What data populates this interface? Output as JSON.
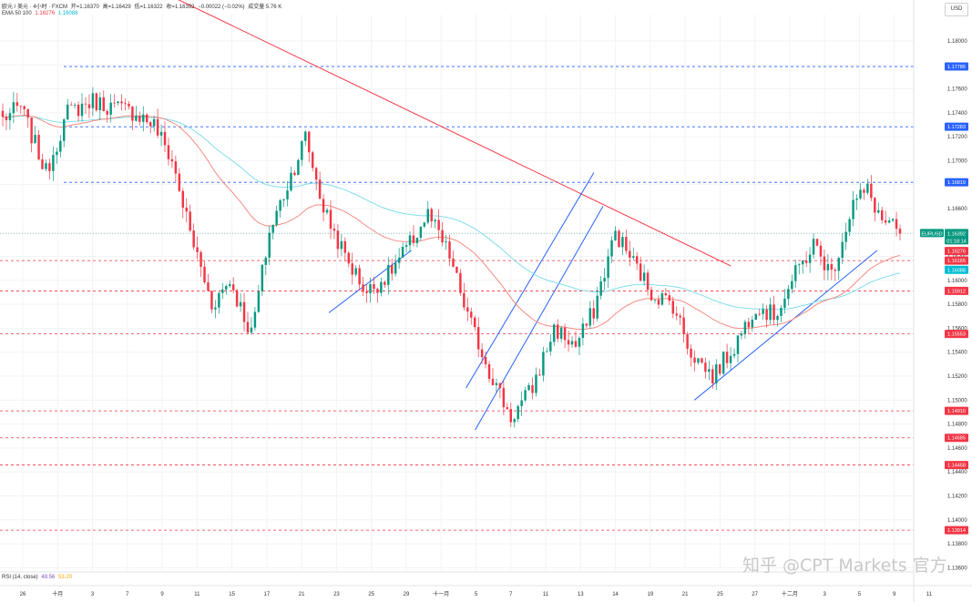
{
  "legend": {
    "symbol": "欧元 / 美元 · 4小时 · FXCM",
    "open": "开=1.16370",
    "high": "高=1.16429",
    "low": "低=1.16322",
    "close": "收=1.16392",
    "change": "−0.00022 (−0.02%)",
    "volume": "成交量 5.76 K",
    "ema_label": "EMA 50 100",
    "ema50": "1.16276",
    "ema100": "1.16088",
    "rsi_label": "RSI (14, close)",
    "rsi_value": "48.56",
    "rsi_ma": "53.20"
  },
  "currency": "USD",
  "watermark": "知乎 @CPT Markets 官方",
  "chart_data": {
    "type": "candlestick",
    "symbol": "EURUSD",
    "timeframe": "4h",
    "ylim": [
      1.1358,
      1.1822
    ],
    "y_ticks": [
      "1.18000",
      "1.17800",
      "1.17600",
      "1.17400",
      "1.17200",
      "1.17000",
      "1.16800",
      "1.16600",
      "1.16400",
      "1.16200",
      "1.16000",
      "1.15800",
      "1.15600",
      "1.15400",
      "1.15200",
      "1.15000",
      "1.14800",
      "1.14600",
      "1.14400",
      "1.14200",
      "1.14000",
      "1.13800",
      "1.13600"
    ],
    "x_ticks": [
      "26",
      "十月",
      "3",
      "7",
      "9",
      "11",
      "15",
      "17",
      "21",
      "23",
      "25",
      "29",
      "十一月",
      "5",
      "7",
      "11",
      "13",
      "14",
      "19",
      "21",
      "25",
      "27",
      "十二月",
      "3",
      "5",
      "9",
      "11"
    ],
    "price_levels": [
      {
        "price": 1.17786,
        "label": "1.17786",
        "color": "#2962ff"
      },
      {
        "price": 1.17283,
        "label": "1.17283",
        "color": "#2962ff"
      },
      {
        "price": 1.16819,
        "label": "1.16819",
        "color": "#2962ff"
      },
      {
        "price": 1.16165,
        "label": "1.16165",
        "color": "#f23645"
      },
      {
        "price": 1.15912,
        "label": "1.15912",
        "color": "#f23645"
      },
      {
        "price": 1.15553,
        "label": "1.15553",
        "color": "#f23645"
      },
      {
        "price": 1.1491,
        "label": "1.14910",
        "color": "#f23645"
      },
      {
        "price": 1.14685,
        "label": "1.14685",
        "color": "#f23645"
      },
      {
        "price": 1.14458,
        "label": "1.14458",
        "color": "#f23645"
      },
      {
        "price": 1.13914,
        "label": "1.13914",
        "color": "#f23645"
      }
    ],
    "current": {
      "label": "EURUSD",
      "price": "1.16392",
      "countdown": "01:18:14"
    },
    "ema_markers": [
      {
        "price": "1.16276",
        "color": "#f23645"
      },
      {
        "price": "1.16088",
        "color": "#00bcd4"
      }
    ],
    "anchors": [
      {
        "i": 0,
        "p": 1.1735
      },
      {
        "i": 5,
        "p": 1.1745
      },
      {
        "i": 12,
        "p": 1.169
      },
      {
        "i": 18,
        "p": 1.174
      },
      {
        "i": 25,
        "p": 1.175
      },
      {
        "i": 30,
        "p": 1.1745
      },
      {
        "i": 37,
        "p": 1.174
      },
      {
        "i": 42,
        "p": 1.173
      },
      {
        "i": 47,
        "p": 1.17
      },
      {
        "i": 52,
        "p": 1.164
      },
      {
        "i": 58,
        "p": 1.158
      },
      {
        "i": 63,
        "p": 1.16
      },
      {
        "i": 69,
        "p": 1.1555
      },
      {
        "i": 74,
        "p": 1.164
      },
      {
        "i": 79,
        "p": 1.168
      },
      {
        "i": 84,
        "p": 1.172
      },
      {
        "i": 89,
        "p": 1.166
      },
      {
        "i": 95,
        "p": 1.162
      },
      {
        "i": 101,
        "p": 1.159
      },
      {
        "i": 107,
        "p": 1.1605
      },
      {
        "i": 113,
        "p": 1.163
      },
      {
        "i": 118,
        "p": 1.1655
      },
      {
        "i": 124,
        "p": 1.162
      },
      {
        "i": 129,
        "p": 1.157
      },
      {
        "i": 135,
        "p": 1.1525
      },
      {
        "i": 141,
        "p": 1.1485
      },
      {
        "i": 147,
        "p": 1.151
      },
      {
        "i": 153,
        "p": 1.156
      },
      {
        "i": 159,
        "p": 1.1545
      },
      {
        "i": 164,
        "p": 1.1575
      },
      {
        "i": 170,
        "p": 1.164
      },
      {
        "i": 175,
        "p": 1.1615
      },
      {
        "i": 180,
        "p": 1.159
      },
      {
        "i": 186,
        "p": 1.158
      },
      {
        "i": 191,
        "p": 1.154
      },
      {
        "i": 197,
        "p": 1.152
      },
      {
        "i": 203,
        "p": 1.1545
      },
      {
        "i": 209,
        "p": 1.158
      },
      {
        "i": 214,
        "p": 1.157
      },
      {
        "i": 220,
        "p": 1.1605
      },
      {
        "i": 225,
        "p": 1.163
      },
      {
        "i": 230,
        "p": 1.1605
      },
      {
        "i": 236,
        "p": 1.1665
      },
      {
        "i": 240,
        "p": 1.1675
      },
      {
        "i": 244,
        "p": 1.165
      },
      {
        "i": 249,
        "p": 1.1639
      }
    ],
    "trend_lines": [
      {
        "price1": 1.184,
        "price2": 1.1612,
        "color": "#f23645",
        "t1": 0.18,
        "t2": 0.8
      },
      {
        "price1": 1.1573,
        "price2": 1.1625,
        "color": "#2962ff",
        "t1": 0.36,
        "t2": 0.45
      },
      {
        "price1": 1.1475,
        "price2": 1.1662,
        "color": "#2962ff",
        "t1": 0.52,
        "t2": 0.66
      },
      {
        "price1": 1.151,
        "price2": 1.169,
        "color": "#2962ff",
        "t1": 0.51,
        "t2": 0.65
      },
      {
        "price1": 1.15,
        "price2": 1.1625,
        "color": "#2962ff",
        "t1": 0.76,
        "t2": 0.96
      }
    ]
  }
}
